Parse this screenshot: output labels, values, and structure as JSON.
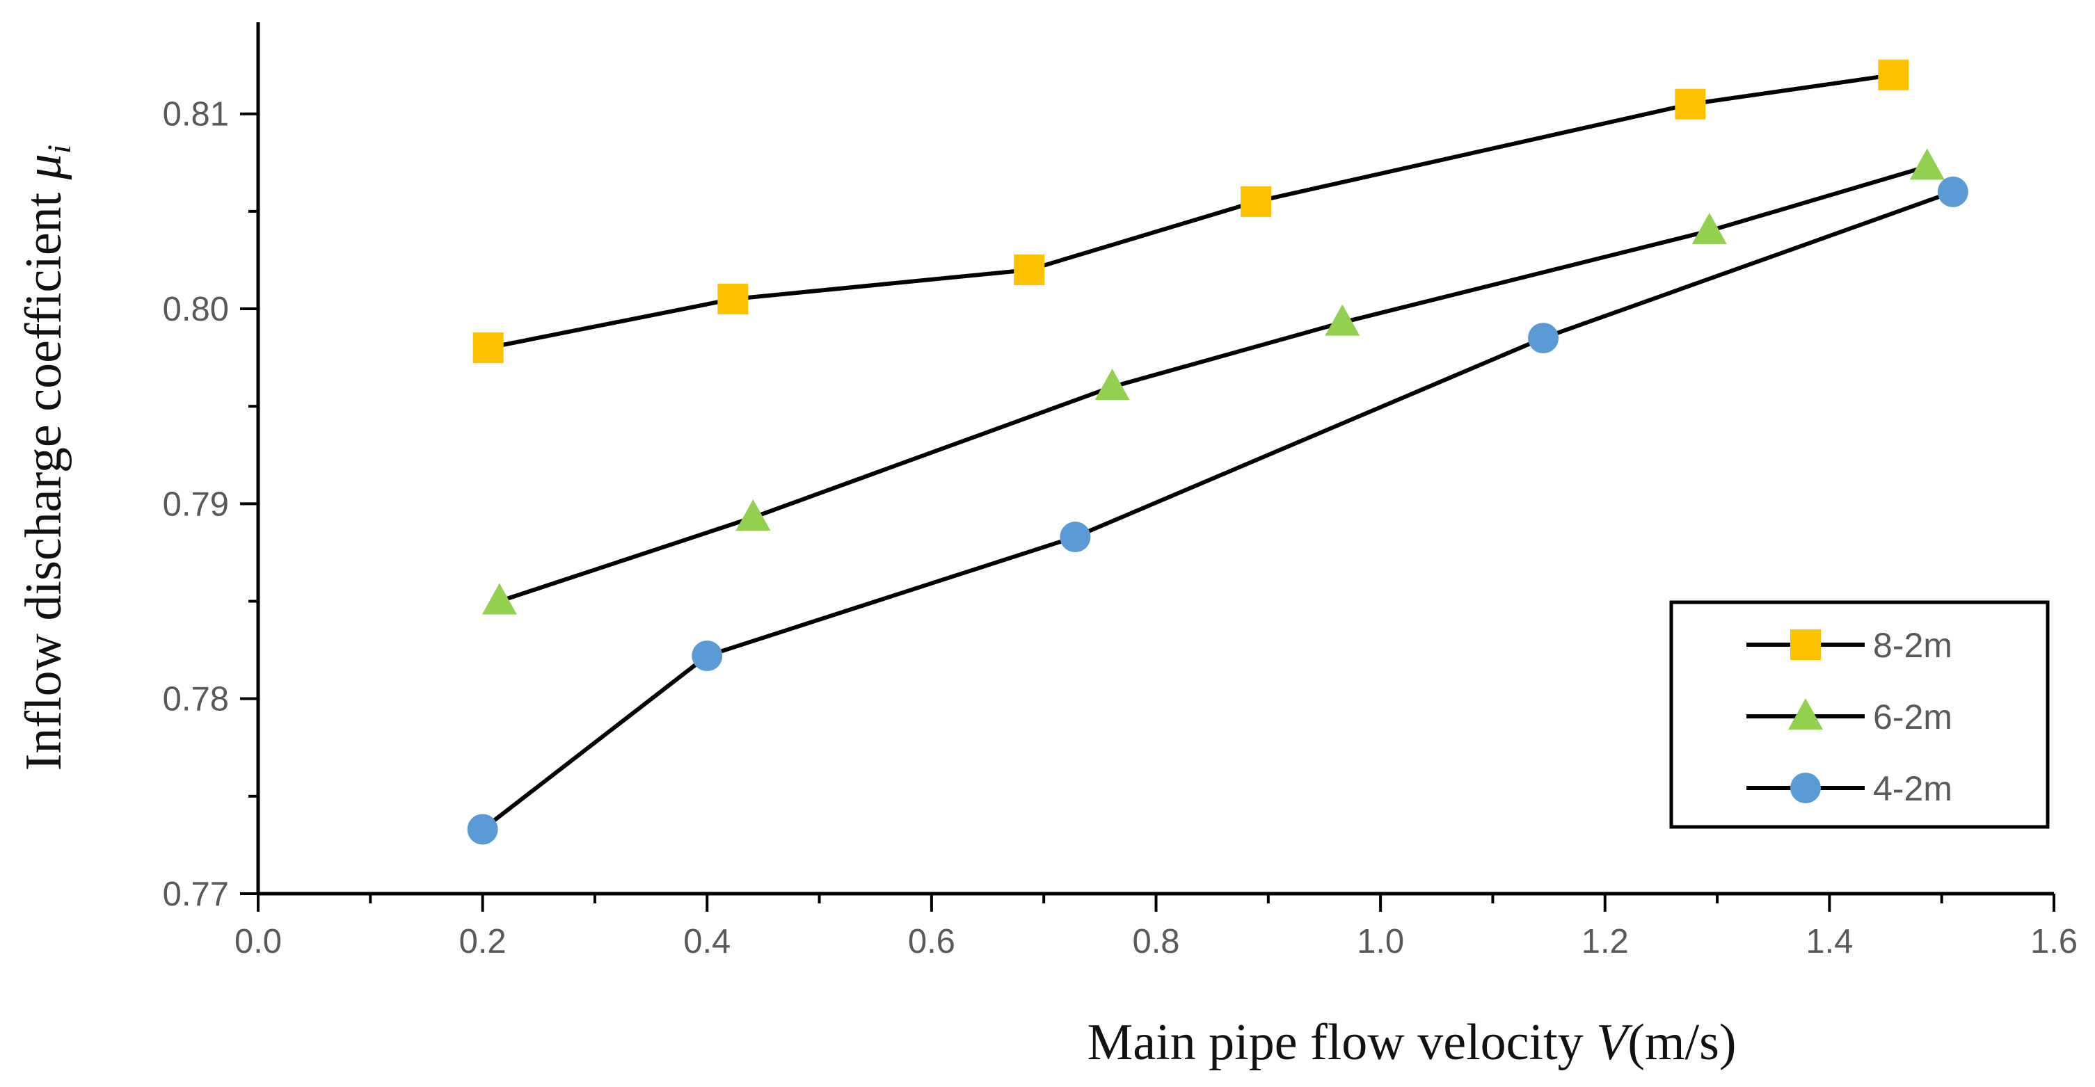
{
  "chart_data": {
    "type": "line",
    "title": "",
    "xlabel": {
      "prefix": "Main pipe flow velocity ",
      "variable": "V",
      "suffix": "(m/s)"
    },
    "ylabel": {
      "prefix": "Inflow discharge coefficient ",
      "variable": "μ",
      "subscript": "i"
    },
    "xlim": [
      0.0,
      1.6
    ],
    "ylim": [
      0.77,
      0.8147
    ],
    "x_ticks": [
      0.0,
      0.2,
      0.4,
      0.6,
      0.8,
      1.0,
      1.2,
      1.4,
      1.6
    ],
    "x_tick_labels": [
      "0.0",
      "0.2",
      "0.4",
      "0.6",
      "0.8",
      "1.0",
      "1.2",
      "1.4",
      "1.6"
    ],
    "y_ticks": [
      0.77,
      0.78,
      0.79,
      0.8,
      0.81
    ],
    "y_tick_labels": [
      "0.77",
      "0.78",
      "0.79",
      "0.80",
      "0.81"
    ],
    "grid": false,
    "legend_position": "bottom-right",
    "series": [
      {
        "name": "8-2m",
        "marker": "square",
        "color": "#FFC000",
        "line_color": "#000000",
        "x": [
          0.205,
          0.423,
          0.687,
          0.889,
          1.276,
          1.457
        ],
        "y": [
          0.798,
          0.8005,
          0.802,
          0.8055,
          0.8105,
          0.812
        ]
      },
      {
        "name": "6-2m",
        "marker": "triangle",
        "color": "#92D050",
        "line_color": "#000000",
        "x": [
          0.215,
          0.441,
          0.761,
          0.966,
          1.293,
          1.487
        ],
        "y": [
          0.785,
          0.7893,
          0.796,
          0.7993,
          0.804,
          0.8073
        ]
      },
      {
        "name": "4-2m",
        "marker": "circle",
        "color": "#5B9BD5",
        "line_color": "#000000",
        "x": [
          0.2,
          0.4,
          0.728,
          1.145,
          1.51
        ],
        "y": [
          0.7733,
          0.7822,
          0.7883,
          0.7985,
          0.806
        ]
      }
    ]
  }
}
